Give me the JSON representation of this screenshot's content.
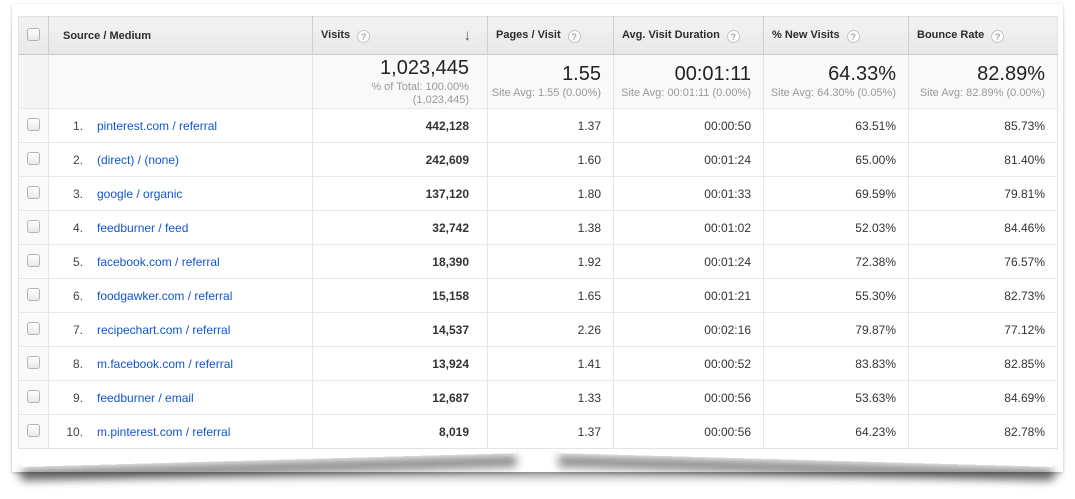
{
  "colors": {
    "link_blue": "#1155cc",
    "header_bg": "#ececec",
    "grid_line": "#e7e7e7",
    "summary_sub_gray": "#999999"
  },
  "icons": {
    "help_icon": "?",
    "sort_desc_icon": "↓"
  },
  "table": {
    "columns": [
      {
        "label": "Source / Medium",
        "help": false
      },
      {
        "label": "Visits",
        "help": true,
        "sorted": "desc"
      },
      {
        "label": "Pages / Visit",
        "help": true
      },
      {
        "label": "Avg. Visit Duration",
        "help": true
      },
      {
        "label": "% New Visits",
        "help": true
      },
      {
        "label": "Bounce Rate",
        "help": true
      }
    ],
    "summary": {
      "visits": {
        "value": "1,023,445",
        "sub": "% of Total: 100.00% (1,023,445)"
      },
      "pages": {
        "value": "1.55",
        "sub": "Site Avg: 1.55 (0.00%)"
      },
      "duration": {
        "value": "00:01:11",
        "sub": "Site Avg: 00:01:11 (0.00%)"
      },
      "new_visits": {
        "value": "64.33%",
        "sub": "Site Avg: 64.30% (0.05%)"
      },
      "bounce": {
        "value": "82.89%",
        "sub": "Site Avg: 82.89% (0.00%)"
      }
    },
    "rows": [
      {
        "rank": "1.",
        "source": "pinterest.com / referral",
        "visits": "442,128",
        "pages": "1.37",
        "duration": "00:00:50",
        "new_visits": "63.51%",
        "bounce": "85.73%"
      },
      {
        "rank": "2.",
        "source": "(direct) / (none)",
        "visits": "242,609",
        "pages": "1.60",
        "duration": "00:01:24",
        "new_visits": "65.00%",
        "bounce": "81.40%"
      },
      {
        "rank": "3.",
        "source": "google / organic",
        "visits": "137,120",
        "pages": "1.80",
        "duration": "00:01:33",
        "new_visits": "69.59%",
        "bounce": "79.81%"
      },
      {
        "rank": "4.",
        "source": "feedburner / feed",
        "visits": "32,742",
        "pages": "1.38",
        "duration": "00:01:02",
        "new_visits": "52.03%",
        "bounce": "84.46%"
      },
      {
        "rank": "5.",
        "source": "facebook.com / referral",
        "visits": "18,390",
        "pages": "1.92",
        "duration": "00:01:24",
        "new_visits": "72.38%",
        "bounce": "76.57%"
      },
      {
        "rank": "6.",
        "source": "foodgawker.com / referral",
        "visits": "15,158",
        "pages": "1.65",
        "duration": "00:01:21",
        "new_visits": "55.30%",
        "bounce": "82.73%"
      },
      {
        "rank": "7.",
        "source": "recipechart.com / referral",
        "visits": "14,537",
        "pages": "2.26",
        "duration": "00:02:16",
        "new_visits": "79.87%",
        "bounce": "77.12%"
      },
      {
        "rank": "8.",
        "source": "m.facebook.com / referral",
        "visits": "13,924",
        "pages": "1.41",
        "duration": "00:00:52",
        "new_visits": "83.83%",
        "bounce": "82.85%"
      },
      {
        "rank": "9.",
        "source": "feedburner / email",
        "visits": "12,687",
        "pages": "1.33",
        "duration": "00:00:56",
        "new_visits": "53.63%",
        "bounce": "84.69%"
      },
      {
        "rank": "10.",
        "source": "m.pinterest.com / referral",
        "visits": "8,019",
        "pages": "1.37",
        "duration": "00:00:56",
        "new_visits": "64.23%",
        "bounce": "82.78%"
      }
    ]
  }
}
